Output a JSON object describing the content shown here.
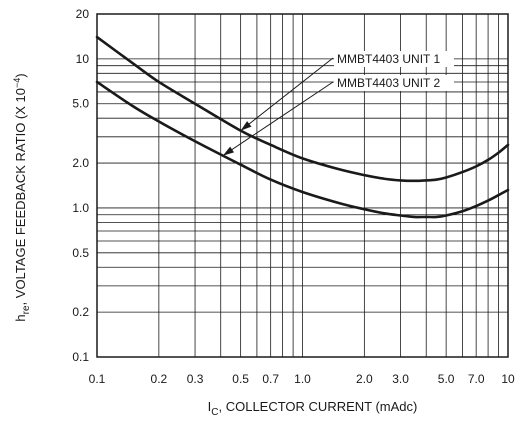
{
  "chart_data": {
    "type": "line",
    "title": "",
    "xlabel_base": "I",
    "xlabel_sub": "C",
    "xlabel_rest": ", COLLECTOR CURRENT (mAdc)",
    "ylabel_base": "h",
    "ylabel_sub": "re",
    "ylabel_rest": ", VOLTAGE FEEDBACK RATIO (X 10",
    "ylabel_sup": "−4",
    "ylabel_close": ")",
    "x_scale": "log",
    "y_scale": "log",
    "xlim": [
      0.1,
      10
    ],
    "ylim": [
      0.1,
      20
    ],
    "grid": true,
    "x_ticks": [
      {
        "value": 0.1,
        "label": "0.1"
      },
      {
        "value": 0.2,
        "label": "0.2"
      },
      {
        "value": 0.3,
        "label": "0.3"
      },
      {
        "value": 0.5,
        "label": "0.5"
      },
      {
        "value": 0.7,
        "label": "0.7"
      },
      {
        "value": 1.0,
        "label": "1.0"
      },
      {
        "value": 2.0,
        "label": "2.0"
      },
      {
        "value": 3.0,
        "label": "3.0"
      },
      {
        "value": 5.0,
        "label": "5.0"
      },
      {
        "value": 7.0,
        "label": "7.0"
      },
      {
        "value": 10,
        "label": "10"
      }
    ],
    "y_ticks": [
      {
        "value": 0.1,
        "label": "0.1"
      },
      {
        "value": 0.2,
        "label": "0.2"
      },
      {
        "value": 0.5,
        "label": "0.5"
      },
      {
        "value": 1.0,
        "label": "1.0"
      },
      {
        "value": 2.0,
        "label": "2.0"
      },
      {
        "value": 5.0,
        "label": "5.0"
      },
      {
        "value": 10,
        "label": "10"
      },
      {
        "value": 20,
        "label": "20"
      }
    ],
    "series": [
      {
        "name": "MMBT4403 UNIT 1",
        "x": [
          0.1,
          0.15,
          0.2,
          0.3,
          0.5,
          0.7,
          1.0,
          1.5,
          2.0,
          2.5,
          3.0,
          3.5,
          4.0,
          4.5,
          5.0,
          6.0,
          7.0,
          8.0,
          9.0,
          10
        ],
        "y": [
          14,
          9.3,
          7.0,
          5.0,
          3.3,
          2.65,
          2.15,
          1.82,
          1.66,
          1.57,
          1.53,
          1.52,
          1.53,
          1.55,
          1.6,
          1.74,
          1.9,
          2.1,
          2.35,
          2.65
        ]
      },
      {
        "name": "MMBT4403 UNIT 2",
        "x": [
          0.1,
          0.15,
          0.2,
          0.3,
          0.5,
          0.7,
          1.0,
          1.5,
          2.0,
          2.5,
          3.0,
          3.5,
          4.0,
          4.5,
          5.0,
          6.0,
          7.0,
          8.0,
          9.0,
          10
        ],
        "y": [
          7.0,
          4.8,
          3.8,
          2.8,
          1.95,
          1.55,
          1.28,
          1.08,
          0.98,
          0.92,
          0.89,
          0.87,
          0.87,
          0.87,
          0.89,
          0.95,
          1.03,
          1.12,
          1.22,
          1.32
        ]
      }
    ],
    "annotations": [
      {
        "text": "MMBT4403 UNIT 1",
        "points_to": "MMBT4403 UNIT 1",
        "at_x": 0.5
      },
      {
        "text": "MMBT4403 UNIT 2",
        "points_to": "MMBT4403 UNIT 2",
        "at_x": 0.41
      }
    ]
  }
}
